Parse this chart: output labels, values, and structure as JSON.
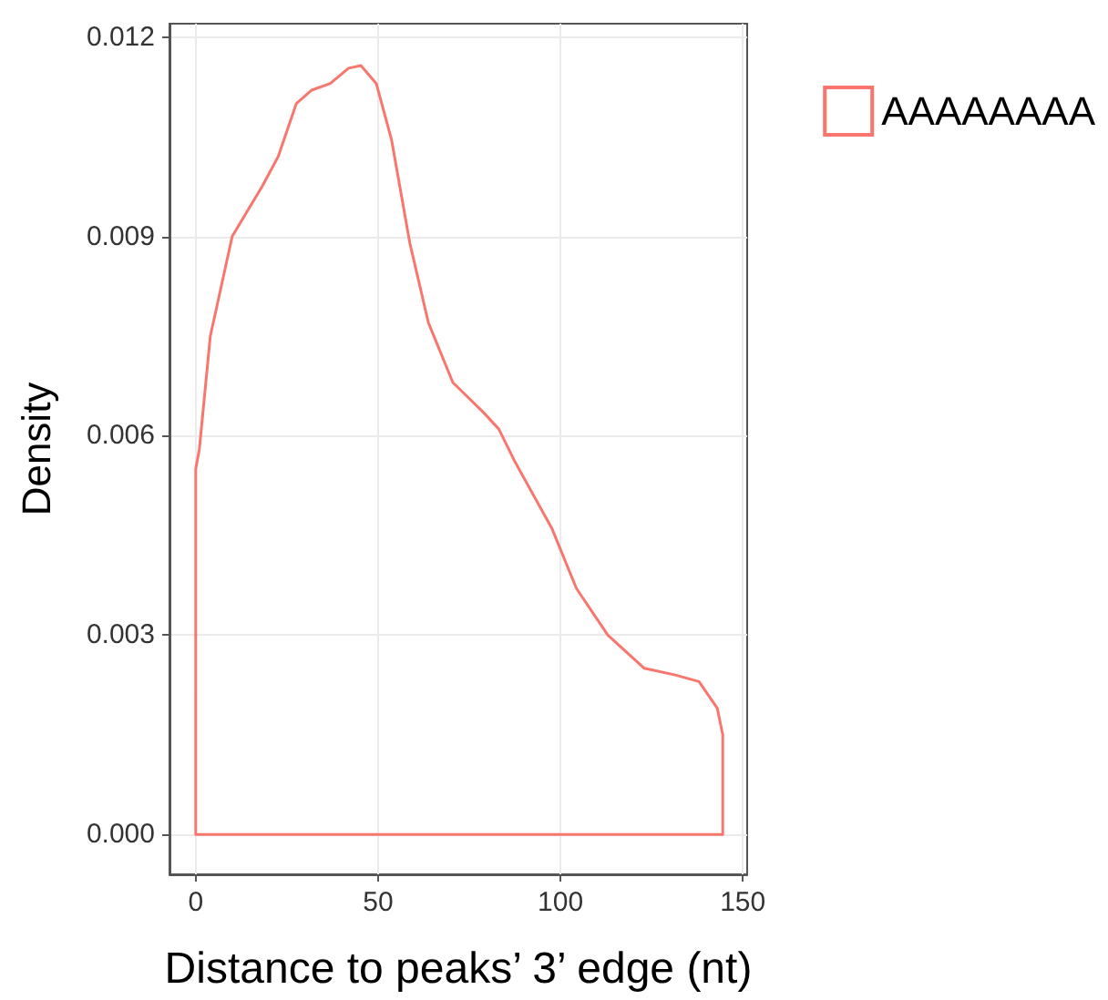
{
  "chart_data": {
    "type": "line",
    "xlabel": "Distance to peaks’ 3’ edge (nt)",
    "ylabel": "Density",
    "xlim": [
      -7.2,
      151.2
    ],
    "ylim": [
      -0.0006,
      0.0122
    ],
    "xticks": [
      0,
      50,
      100,
      150
    ],
    "yticks": [
      {
        "value": 0,
        "label": "0.000"
      },
      {
        "value": 0.003,
        "label": "0.003"
      },
      {
        "value": 0.006,
        "label": "0.006"
      },
      {
        "value": 0.009,
        "label": "0.009"
      },
      {
        "value": 0.012,
        "label": "0.012"
      }
    ],
    "grid": true,
    "legend": "top right",
    "marker": "none",
    "line_style": "solid",
    "series": [
      {
        "name": "AAAAAAAA",
        "color": "#f8766d",
        "x": [
          0,
          0,
          1,
          4,
          10,
          18.2,
          22.6,
          27.6,
          31.8,
          36.9,
          41.9,
          45.3,
          49.5,
          53.7,
          58.7,
          63.8,
          70.5,
          78.9,
          83.1,
          87.6,
          97.7,
          104.4,
          113,
          123,
          131.5,
          138,
          143,
          144.5,
          144.5
        ],
        "values": [
          0,
          0.0055,
          0.0058,
          0.0075,
          0.009,
          0.00975,
          0.0102,
          0.011,
          0.0112,
          0.0113,
          0.01153,
          0.01157,
          0.0113,
          0.01045,
          0.0089,
          0.0077,
          0.0068,
          0.00635,
          0.0061,
          0.0056,
          0.0046,
          0.0037,
          0.003,
          0.0025,
          0.0024,
          0.0023,
          0.0019,
          0.0015,
          0
        ]
      }
    ],
    "ref_lines": [
      {
        "axis": "y",
        "value": 0,
        "color": "#f8766d"
      }
    ]
  }
}
